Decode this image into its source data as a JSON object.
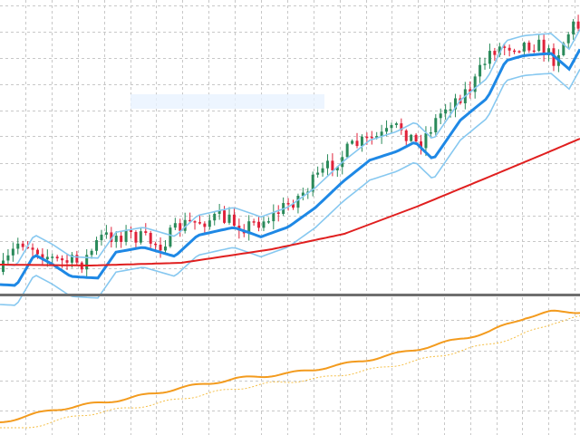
{
  "colors": {
    "background": "#ffffff",
    "grid": "#c8c8c8",
    "separator": "#6f6f6f",
    "bull_candle": "#2a8a5a",
    "bear_candle": "#e0223a",
    "ma_fast": "#1e88e5",
    "ma_band": "#87c8f0",
    "ma_slow": "#e01f1f",
    "indicator_main": "#f39b1e",
    "indicator_signal": "#f5c04a",
    "label_box": "#e8f2ff"
  },
  "chart_data": [
    {
      "type": "candlestick",
      "panel": "price",
      "title": "",
      "xlabel": "",
      "ylabel": "",
      "bars": 118,
      "ylim": [
        0,
        100
      ],
      "grid": true,
      "overlays": [
        {
          "id": "ma_fast",
          "style": "thick-line"
        },
        {
          "id": "band_upper",
          "style": "thin-line"
        },
        {
          "id": "band_lower",
          "style": "thin-line"
        },
        {
          "id": "ma_slow",
          "style": "line"
        }
      ]
    },
    {
      "type": "line",
      "panel": "indicator",
      "title": "",
      "xlabel": "",
      "ylabel": "",
      "grid": true,
      "series": [
        {
          "id": "indicator_main",
          "style": "solid"
        },
        {
          "id": "indicator_signal",
          "style": "dotted"
        }
      ]
    }
  ]
}
